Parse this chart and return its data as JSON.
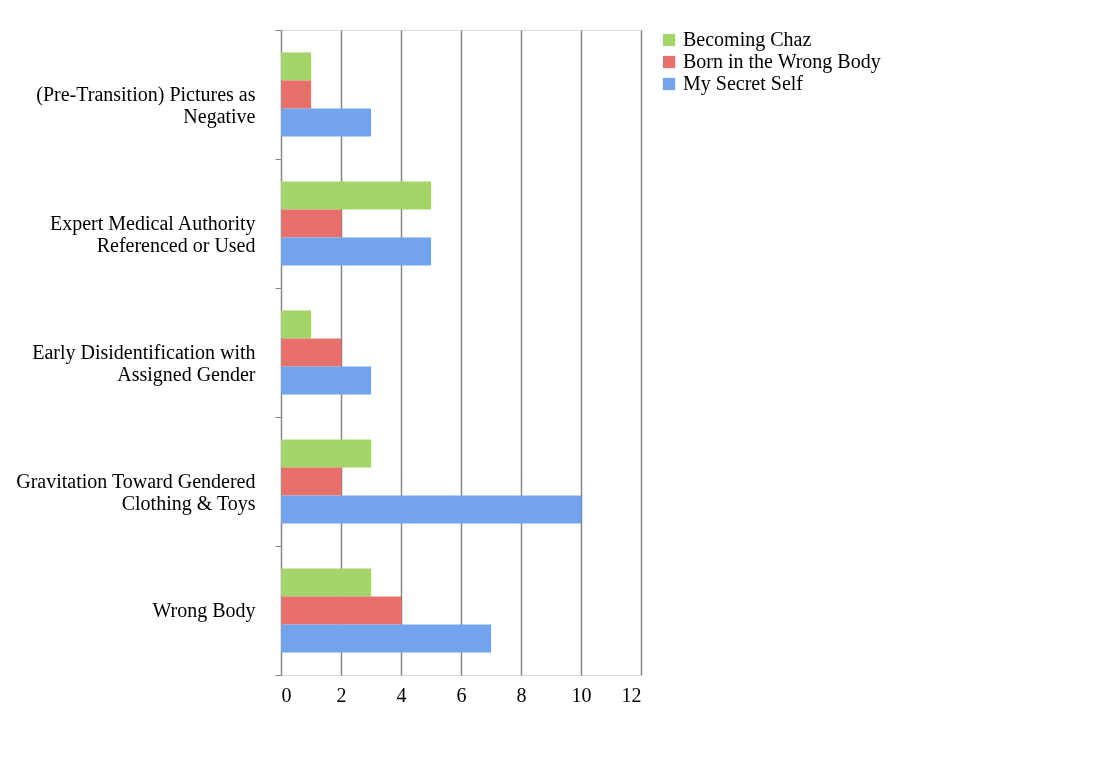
{
  "chart_data": {
    "type": "bar",
    "orientation": "horizontal",
    "categories": [
      "(Pre-Transition) Pictures as Negative",
      "Expert Medical Authority Referenced or Used",
      "Early Disidentification with Assigned Gender",
      "Gravitation Toward Gendered Clothing & Toys",
      "Wrong Body"
    ],
    "series": [
      {
        "name": "Becoming Chaz",
        "color": "#a5d46a",
        "values": [
          1,
          5,
          1,
          3,
          3
        ]
      },
      {
        "name": "Born in the Wrong Body",
        "color": "#e8706b",
        "values": [
          1,
          2,
          2,
          2,
          4
        ]
      },
      {
        "name": "My Secret Self",
        "color": "#72a3ec",
        "values": [
          3,
          5,
          3,
          10,
          7
        ]
      }
    ],
    "xlim": [
      0,
      12
    ],
    "xticks": [
      0,
      2,
      4,
      6,
      8,
      10,
      12
    ],
    "grid": "x",
    "legend": "right"
  }
}
